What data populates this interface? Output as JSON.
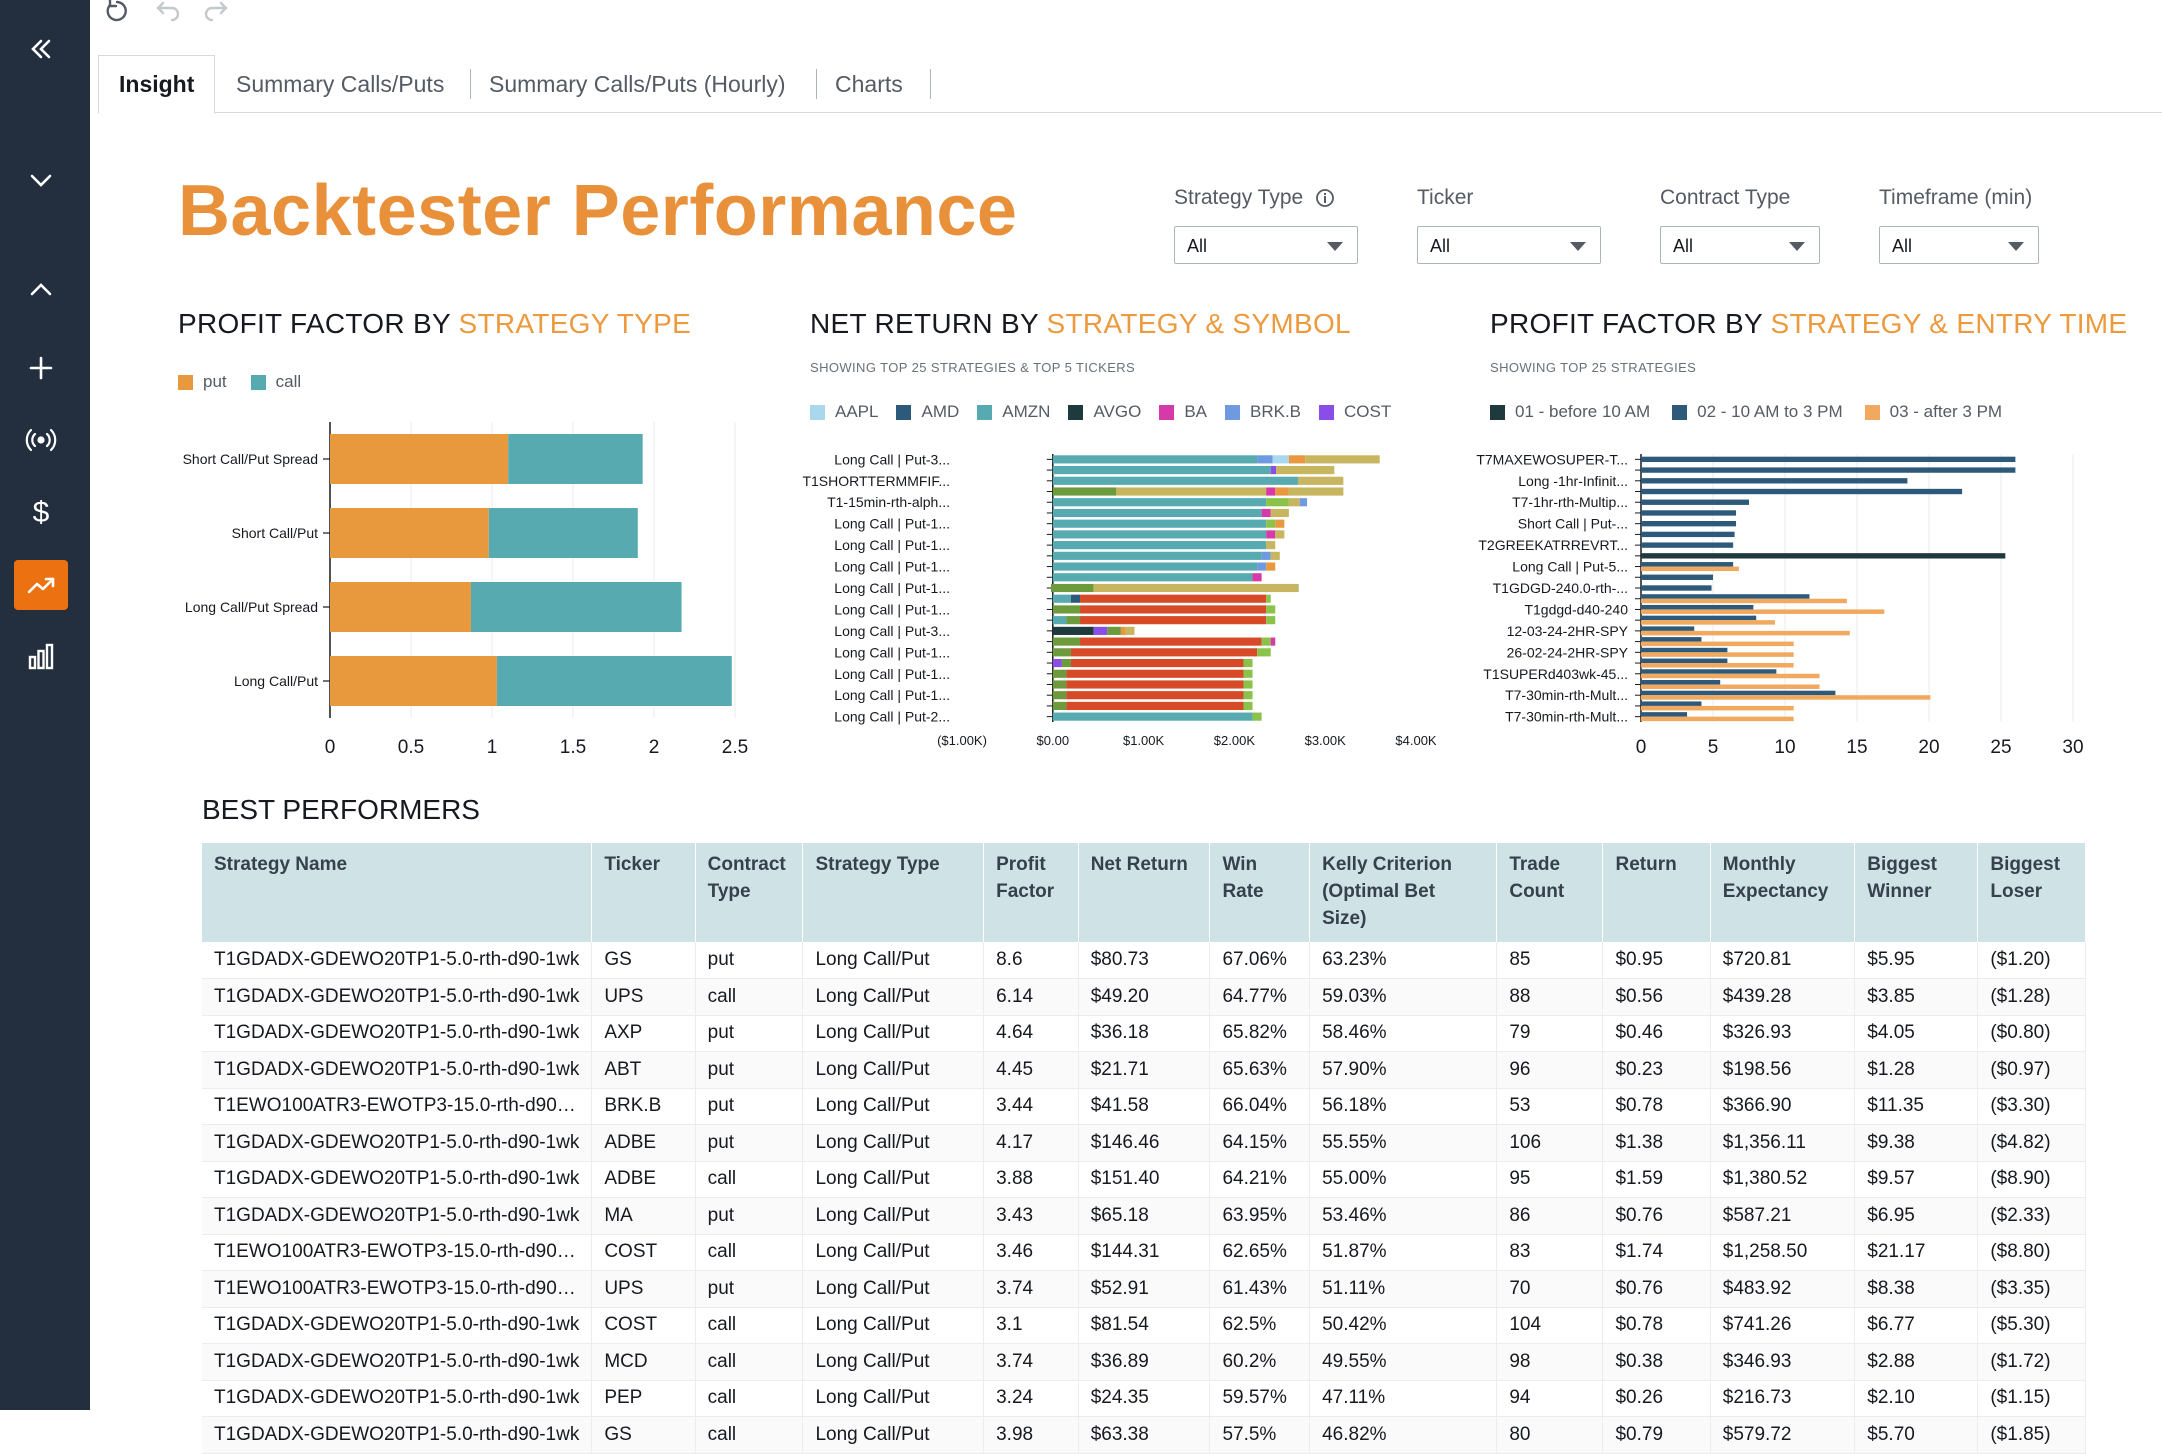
{
  "tabs": [
    "Insight",
    "Summary Calls/Puts",
    "Summary Calls/Puts (Hourly)",
    "Charts"
  ],
  "page_title": "Backtester Performance",
  "filters": [
    {
      "label": "Strategy Type",
      "value": "All",
      "info": true
    },
    {
      "label": "Ticker",
      "value": "All"
    },
    {
      "label": "Contract Type",
      "value": "All"
    },
    {
      "label": "Timeframe (min)",
      "value": "All"
    }
  ],
  "sections": {
    "pf_strategy_type": {
      "prefix": "PROFIT FACTOR BY ",
      "highlight": "STRATEGY TYPE"
    },
    "net_return": {
      "prefix": "NET RETURN BY ",
      "highlight": "STRATEGY & SYMBOL",
      "subtitle": "SHOWING TOP 25 STRATEGIES & TOP 5 TICKERS"
    },
    "pf_entry_time": {
      "prefix": "PROFIT FACTOR BY ",
      "highlight": "STRATEGY & ENTRY TIME",
      "subtitle": "SHOWING TOP 25 STRATEGIES"
    },
    "best_performers": "BEST PERFORMERS"
  },
  "colors": {
    "put": "#e8993e",
    "call": "#56aab0",
    "accent": "#ec7211",
    "sidebar": "#232f3e"
  },
  "chart_data": [
    {
      "type": "bar",
      "orientation": "horizontal",
      "stacked": true,
      "categories": [
        "Short Call/Put Spread",
        "Short Call/Put",
        "Long Call/Put Spread",
        "Long Call/Put"
      ],
      "series": [
        {
          "name": "put",
          "color": "#e8993e",
          "values": [
            1.1,
            0.98,
            0.87,
            1.03
          ]
        },
        {
          "name": "call",
          "color": "#56aab0",
          "values": [
            0.83,
            0.92,
            1.3,
            1.45
          ]
        }
      ],
      "xticks": [
        "0",
        "0.5",
        "1",
        "1.5",
        "2",
        "2.5"
      ],
      "xlim": [
        0,
        2.5
      ],
      "legend": "top-left"
    },
    {
      "type": "bar",
      "orientation": "horizontal",
      "stacked": true,
      "legend_items": [
        {
          "name": "AAPL",
          "color": "#a9d8ee"
        },
        {
          "name": "AMD",
          "color": "#2d5a7b"
        },
        {
          "name": "AMZN",
          "color": "#56aab0"
        },
        {
          "name": "AVGO",
          "color": "#1f3a3d"
        },
        {
          "name": "BA",
          "color": "#d63aa8"
        },
        {
          "name": "BRK.B",
          "color": "#6f9ae0"
        },
        {
          "name": "COST",
          "color": "#8a4de8"
        }
      ],
      "categories": [
        "Long Call | Put-3...",
        "T1SHORTTERMMFIF...",
        "T1-15min-rth-alph...",
        "Long Call | Put-1...",
        "Long Call | Put-1...",
        "Long Call | Put-1...",
        "Long Call | Put-1...",
        "Long Call | Put-1...",
        "Long Call | Put-3...",
        "Long Call | Put-1...",
        "Long Call | Put-1...",
        "Long Call | Put-1...",
        "Long Call | Put-2..."
      ],
      "rows_total": 25,
      "xticks": [
        "($1.00K)",
        "$0.00",
        "$1.00K",
        "$2.00K",
        "$3.00K",
        "$4.00K"
      ],
      "xlim": [
        -1000,
        4000
      ],
      "rows": [
        [
          [
            "#56aab0",
            0,
            2250
          ],
          [
            "#6f9ae0",
            2250,
            2420
          ],
          [
            "#a9d8ee",
            2420,
            2600
          ],
          [
            "#e8993e",
            2600,
            2780
          ],
          [
            "#c7b560",
            2780,
            3600
          ]
        ],
        [
          [
            "#56aab0",
            0,
            2400
          ],
          [
            "#8a4de8",
            2400,
            2460
          ],
          [
            "#c7b560",
            2460,
            3100
          ]
        ],
        [
          [
            "#56aab0",
            0,
            2700
          ],
          [
            "#c7b560",
            2700,
            3200
          ]
        ],
        [
          [
            "#6c9a3c",
            0,
            700
          ],
          [
            "#c7b560",
            700,
            2350
          ],
          [
            "#d63aa8",
            2350,
            2450
          ],
          [
            "#e8993e",
            2450,
            2600
          ],
          [
            "#c7b560",
            2600,
            3200
          ]
        ],
        [
          [
            "#56aab0",
            0,
            2350
          ],
          [
            "#8bc34a",
            2350,
            2600
          ],
          [
            "#c7b560",
            2600,
            2720
          ],
          [
            "#6f9ae0",
            2720,
            2800
          ]
        ],
        [
          [
            "#56aab0",
            0,
            2300
          ],
          [
            "#d63aa8",
            2300,
            2400
          ],
          [
            "#c7b560",
            2400,
            2600
          ]
        ],
        [
          [
            "#56aab0",
            0,
            2350
          ],
          [
            "#8bc34a",
            2350,
            2450
          ],
          [
            "#e8993e",
            2450,
            2550
          ]
        ],
        [
          [
            "#56aab0",
            0,
            2350
          ],
          [
            "#d63aa8",
            2350,
            2450
          ],
          [
            "#c7b560",
            2450,
            2550
          ]
        ],
        [
          [
            "#56aab0",
            0,
            2350
          ],
          [
            "#c7b560",
            2350,
            2450
          ]
        ],
        [
          [
            "#56aab0",
            0,
            2300
          ],
          [
            "#6f9ae0",
            2300,
            2400
          ],
          [
            "#c7b560",
            2400,
            2500
          ]
        ],
        [
          [
            "#56aab0",
            0,
            2250
          ],
          [
            "#6f9ae0",
            2250,
            2350
          ],
          [
            "#e8993e",
            2350,
            2450
          ]
        ],
        [
          [
            "#56aab0",
            0,
            2200
          ],
          [
            "#d63aa8",
            2200,
            2300
          ]
        ],
        [
          [
            "#6c9a3c",
            -20,
            450
          ],
          [
            "#c7b560",
            450,
            2700
          ],
          [
            "#6c9a3c",
            2700,
            2700
          ]
        ],
        [
          [
            "#56aab0",
            0,
            200
          ],
          [
            "#2d5a7b",
            200,
            300
          ],
          [
            "#d64a28",
            300,
            2350
          ],
          [
            "#8bc34a",
            2350,
            2400
          ]
        ],
        [
          [
            "#6c9a3c",
            0,
            300
          ],
          [
            "#d64a28",
            300,
            2350
          ],
          [
            "#8bc34a",
            2350,
            2450
          ]
        ],
        [
          [
            "#56aab0",
            0,
            150
          ],
          [
            "#6c9a3c",
            150,
            300
          ],
          [
            "#d64a28",
            300,
            2350
          ],
          [
            "#8bc34a",
            2350,
            2450
          ]
        ],
        [
          [
            "#1f3a3d",
            0,
            450
          ],
          [
            "#8a4de8",
            450,
            600
          ],
          [
            "#6c9a3c",
            600,
            750
          ],
          [
            "#e8993e",
            750,
            800
          ],
          [
            "#c7b560",
            800,
            900
          ]
        ],
        [
          [
            "#6c9a3c",
            0,
            300
          ],
          [
            "#d64a28",
            300,
            2300
          ],
          [
            "#8bc34a",
            2300,
            2400
          ],
          [
            "#d63aa8",
            2400,
            2450
          ]
        ],
        [
          [
            "#6c9a3c",
            0,
            200
          ],
          [
            "#d64a28",
            200,
            2250
          ],
          [
            "#8bc34a",
            2250,
            2400
          ]
        ],
        [
          [
            "#8a4de8",
            0,
            100
          ],
          [
            "#6c9a3c",
            100,
            200
          ],
          [
            "#d64a28",
            200,
            2100
          ],
          [
            "#8bc34a",
            2100,
            2200
          ]
        ],
        [
          [
            "#6c9a3c",
            0,
            150
          ],
          [
            "#d64a28",
            150,
            2100
          ],
          [
            "#8bc34a",
            2100,
            2200
          ]
        ],
        [
          [
            "#6c9a3c",
            0,
            150
          ],
          [
            "#d64a28",
            150,
            2100
          ],
          [
            "#8bc34a",
            2100,
            2200
          ]
        ],
        [
          [
            "#6c9a3c",
            0,
            150
          ],
          [
            "#d64a28",
            150,
            2100
          ],
          [
            "#8bc34a",
            2100,
            2200
          ]
        ],
        [
          [
            "#6c9a3c",
            0,
            150
          ],
          [
            "#d64a28",
            150,
            2100
          ],
          [
            "#8bc34a",
            2100,
            2200
          ]
        ],
        [
          [
            "#56aab0",
            0,
            2200
          ],
          [
            "#8bc34a",
            2200,
            2300
          ]
        ]
      ]
    },
    {
      "type": "bar",
      "orientation": "horizontal",
      "grouped": true,
      "legend_items": [
        {
          "name": "01 - before 10 AM",
          "color": "#1f3a3d"
        },
        {
          "name": "02 - 10 AM to 3 PM",
          "color": "#2d5a7b"
        },
        {
          "name": "03 - after 3 PM",
          "color": "#f0a95e"
        }
      ],
      "categories": [
        "T7MAXEWOSUPER-T...",
        "Long -1hr-Infinit...",
        "T7-1hr-rth-Multip...",
        "Short Call | Put-...",
        "T2GREEKATRREVRT...",
        "Long Call | Put-5...",
        "T1GDGD-240.0-rth-...",
        "T1gdgd-d40-240",
        "12-03-24-2HR-SPY",
        "26-02-24-2HR-SPY",
        "T1SUPERd403wk-45...",
        "T7-30min-rth-Mult...",
        "T7-30min-rth-Mult..."
      ],
      "rows_total": 25,
      "xticks": [
        "0",
        "5",
        "10",
        "15",
        "20",
        "25",
        "30"
      ],
      "xlim": [
        0,
        30
      ],
      "rows": [
        [
          [
            "#2d5a7b",
            26
          ]
        ],
        [
          [
            "#2d5a7b",
            26
          ]
        ],
        [
          [
            "#2d5a7b",
            18.5
          ]
        ],
        [
          [
            "#2d5a7b",
            22.3
          ]
        ],
        [
          [
            "#2d5a7b",
            7.5
          ]
        ],
        [
          [
            "#2d5a7b",
            6.6
          ]
        ],
        [
          [
            "#2d5a7b",
            6.6
          ]
        ],
        [
          [
            "#2d5a7b",
            6.5
          ]
        ],
        [
          [
            "#2d5a7b",
            6.4
          ]
        ],
        [
          [
            "#1f3a3d",
            25.3
          ]
        ],
        [
          [
            "#2d5a7b",
            6.4
          ],
          [
            "#f0a95e",
            6.8
          ]
        ],
        [
          [
            "#2d5a7b",
            5.0
          ]
        ],
        [
          [
            "#2d5a7b",
            4.9
          ]
        ],
        [
          [
            "#2d5a7b",
            11.7
          ],
          [
            "#f0a95e",
            14.3
          ]
        ],
        [
          [
            "#2d5a7b",
            7.8
          ],
          [
            "#f0a95e",
            16.9
          ]
        ],
        [
          [
            "#2d5a7b",
            8.0
          ],
          [
            "#f0a95e",
            9.3
          ]
        ],
        [
          [
            "#2d5a7b",
            3.7
          ],
          [
            "#f0a95e",
            14.5
          ]
        ],
        [
          [
            "#2d5a7b",
            4.2
          ],
          [
            "#f0a95e",
            10.6
          ]
        ],
        [
          [
            "#2d5a7b",
            6.0
          ],
          [
            "#f0a95e",
            10.6
          ]
        ],
        [
          [
            "#2d5a7b",
            6.0
          ],
          [
            "#f0a95e",
            10.6
          ]
        ],
        [
          [
            "#2d5a7b",
            9.4
          ],
          [
            "#f0a95e",
            12.4
          ]
        ],
        [
          [
            "#2d5a7b",
            5.5
          ],
          [
            "#f0a95e",
            12.4
          ]
        ],
        [
          [
            "#2d5a7b",
            13.5
          ],
          [
            "#f0a95e",
            20.1
          ]
        ],
        [
          [
            "#2d5a7b",
            4.2
          ],
          [
            "#f0a95e",
            10.6
          ]
        ],
        [
          [
            "#2d5a7b",
            3.2
          ],
          [
            "#f0a95e",
            10.6
          ]
        ]
      ]
    }
  ],
  "table": {
    "columns": [
      {
        "label": "Strategy Name",
        "w": 380
      },
      {
        "label": "Ticker",
        "w": 104
      },
      {
        "label": "Contract Type",
        "w": 108
      },
      {
        "label": "Strategy Type",
        "w": 182
      },
      {
        "label": "Profit Factor",
        "w": 95
      },
      {
        "label": "Net Return",
        "w": 133
      },
      {
        "label": "Win Rate",
        "w": 100
      },
      {
        "label": "Kelly Criterion (Optimal Bet Size)",
        "w": 190
      },
      {
        "label": "Trade Count",
        "w": 107
      },
      {
        "label": "Return",
        "w": 108
      },
      {
        "label": "Monthly Expectancy",
        "w": 145
      },
      {
        "label": "Biggest Winner",
        "w": 124
      },
      {
        "label": "Biggest Loser",
        "w": 108
      }
    ],
    "rows": [
      [
        "T1GDADX-GDEWO20TP1-5.0-rth-d90-1wk",
        "GS",
        "put",
        "Long Call/Put",
        "8.6",
        "$80.73",
        "67.06%",
        "63.23%",
        "85",
        "$0.95",
        "$720.81",
        "$5.95",
        "($1.20)"
      ],
      [
        "T1GDADX-GDEWO20TP1-5.0-rth-d90-1wk",
        "UPS",
        "call",
        "Long Call/Put",
        "6.14",
        "$49.20",
        "64.77%",
        "59.03%",
        "88",
        "$0.56",
        "$439.28",
        "$3.85",
        "($1.28)"
      ],
      [
        "T1GDADX-GDEWO20TP1-5.0-rth-d90-1wk",
        "AXP",
        "put",
        "Long Call/Put",
        "4.64",
        "$36.18",
        "65.82%",
        "58.46%",
        "79",
        "$0.46",
        "$326.93",
        "$4.05",
        "($0.80)"
      ],
      [
        "T1GDADX-GDEWO20TP1-5.0-rth-d90-1wk",
        "ABT",
        "put",
        "Long Call/Put",
        "4.45",
        "$21.71",
        "65.63%",
        "57.90%",
        "96",
        "$0.23",
        "$198.56",
        "$1.28",
        "($0.97)"
      ],
      [
        "T1EWO100ATR3-EWOTP3-15.0-rth-d90…",
        "BRK.B",
        "put",
        "Long Call/Put",
        "3.44",
        "$41.58",
        "66.04%",
        "56.18%",
        "53",
        "$0.78",
        "$366.90",
        "$11.35",
        "($3.30)"
      ],
      [
        "T1GDADX-GDEWO20TP1-5.0-rth-d90-1wk",
        "ADBE",
        "put",
        "Long Call/Put",
        "4.17",
        "$146.46",
        "64.15%",
        "55.55%",
        "106",
        "$1.38",
        "$1,356.11",
        "$9.38",
        "($4.82)"
      ],
      [
        "T1GDADX-GDEWO20TP1-5.0-rth-d90-1wk",
        "ADBE",
        "call",
        "Long Call/Put",
        "3.88",
        "$151.40",
        "64.21%",
        "55.00%",
        "95",
        "$1.59",
        "$1,380.52",
        "$9.57",
        "($8.90)"
      ],
      [
        "T1GDADX-GDEWO20TP1-5.0-rth-d90-1wk",
        "MA",
        "put",
        "Long Call/Put",
        "3.43",
        "$65.18",
        "63.95%",
        "53.46%",
        "86",
        "$0.76",
        "$587.21",
        "$6.95",
        "($2.33)"
      ],
      [
        "T1EWO100ATR3-EWOTP3-15.0-rth-d90…",
        "COST",
        "call",
        "Long Call/Put",
        "3.46",
        "$144.31",
        "62.65%",
        "51.87%",
        "83",
        "$1.74",
        "$1,258.50",
        "$21.17",
        "($8.80)"
      ],
      [
        "T1EWO100ATR3-EWOTP3-15.0-rth-d90…",
        "UPS",
        "put",
        "Long Call/Put",
        "3.74",
        "$52.91",
        "61.43%",
        "51.11%",
        "70",
        "$0.76",
        "$483.92",
        "$8.38",
        "($3.35)"
      ],
      [
        "T1GDADX-GDEWO20TP1-5.0-rth-d90-1wk",
        "COST",
        "call",
        "Long Call/Put",
        "3.1",
        "$81.54",
        "62.5%",
        "50.42%",
        "104",
        "$0.78",
        "$741.26",
        "$6.77",
        "($5.30)"
      ],
      [
        "T1GDADX-GDEWO20TP1-5.0-rth-d90-1wk",
        "MCD",
        "call",
        "Long Call/Put",
        "3.74",
        "$36.89",
        "60.2%",
        "49.55%",
        "98",
        "$0.38",
        "$346.93",
        "$2.88",
        "($1.72)"
      ],
      [
        "T1GDADX-GDEWO20TP1-5.0-rth-d90-1wk",
        "PEP",
        "call",
        "Long Call/Put",
        "3.24",
        "$24.35",
        "59.57%",
        "47.11%",
        "94",
        "$0.26",
        "$216.73",
        "$2.10",
        "($1.15)"
      ],
      [
        "T1GDADX-GDEWO20TP1-5.0-rth-d90-1wk",
        "GS",
        "call",
        "Long Call/Put",
        "3.98",
        "$63.38",
        "57.5%",
        "46.82%",
        "80",
        "$0.79",
        "$579.72",
        "$5.70",
        "($1.85)"
      ]
    ]
  }
}
